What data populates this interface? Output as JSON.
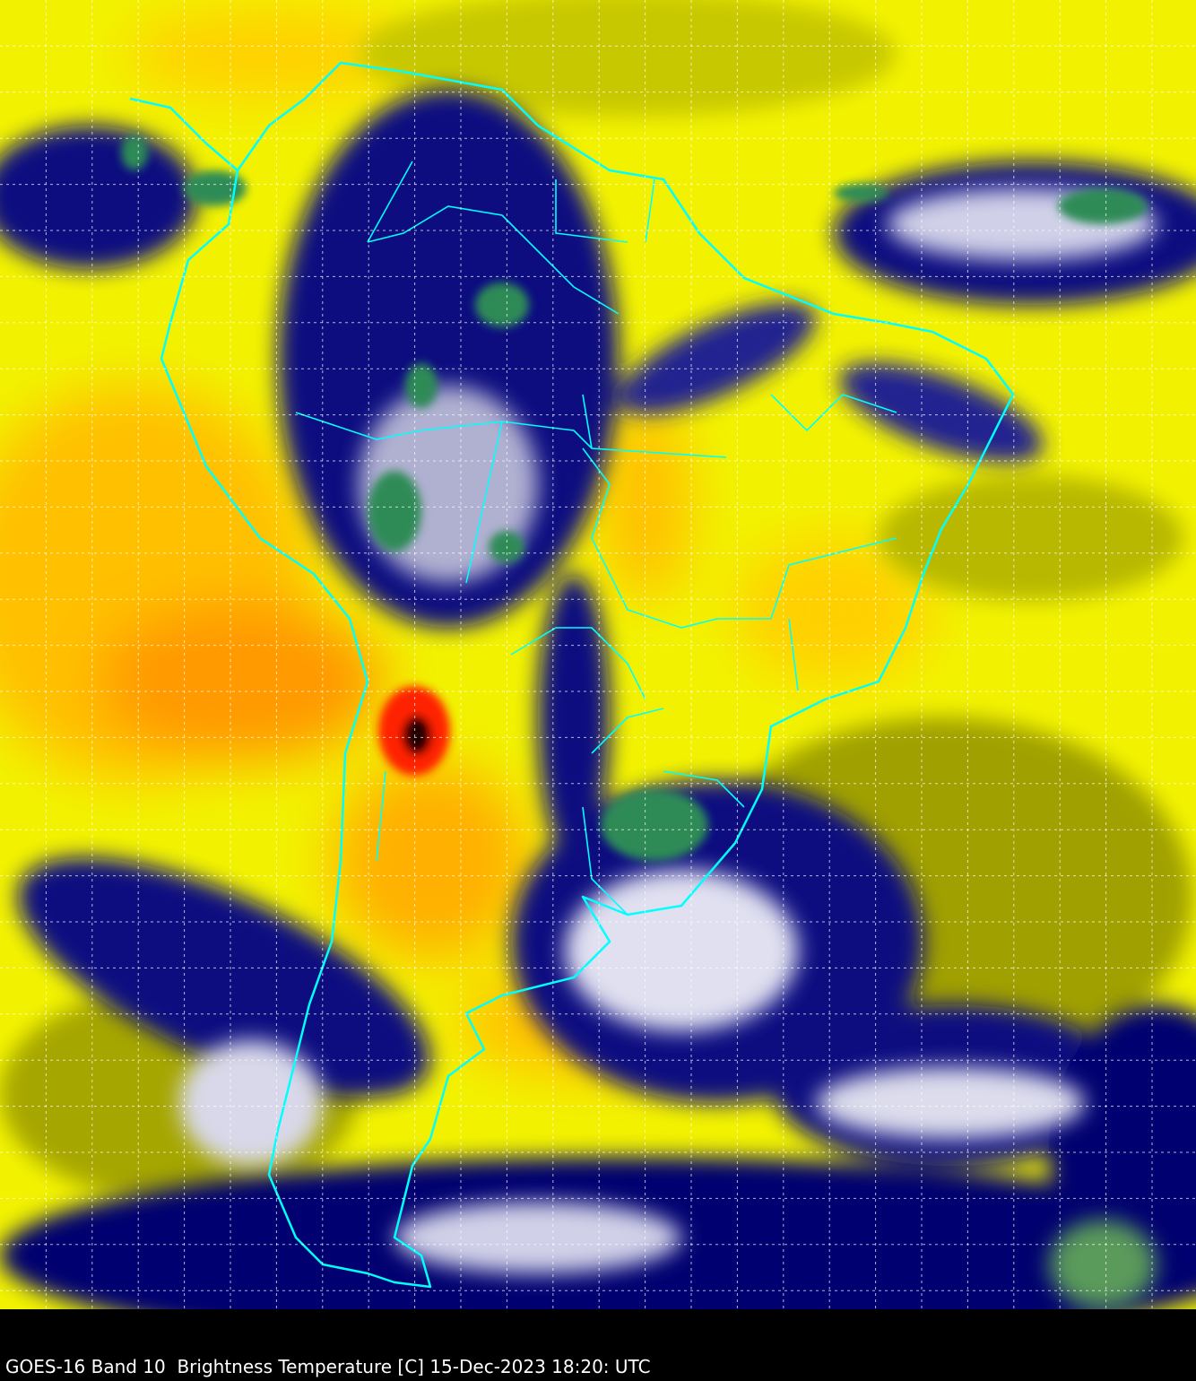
{
  "caption": "GOES-16 Band 10  Brightness Temperature [C] 15-Dec-2023 18:20: UTC",
  "colors": {
    "warm_dry": "#ffff00",
    "warmest": "#ff3000",
    "moist": "#000070",
    "cold_cloud": "#ffffff",
    "coldest_cloud": "#2e8b57",
    "borders": "#00ffff",
    "grid": "#ffffff",
    "background": "#000000"
  }
}
